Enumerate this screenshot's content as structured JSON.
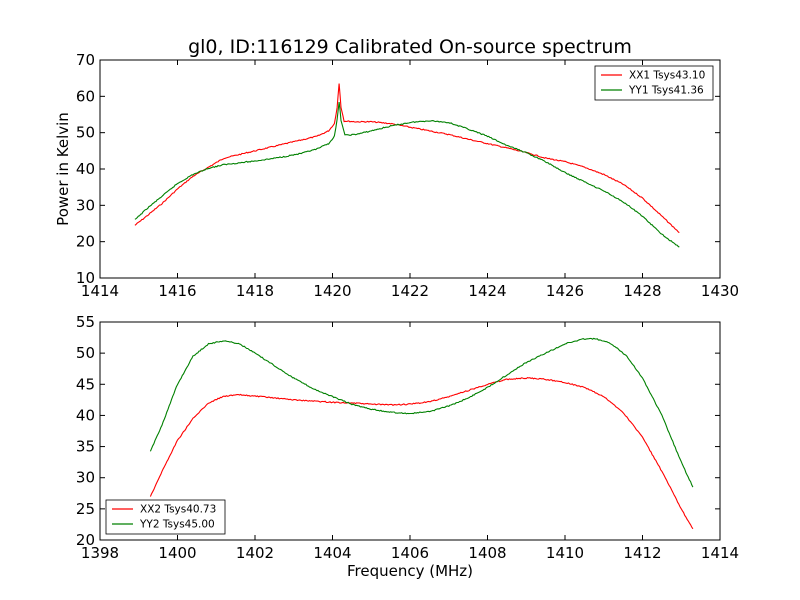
{
  "figure": {
    "title": "gl0, ID:116129 Calibrated On-source spectrum",
    "shared_ylabel": "Power in Kelvin",
    "shared_xlabel": "Frequency (MHz)"
  },
  "colors": {
    "red": "#ff0000",
    "green": "#008000"
  },
  "chart_data": [
    {
      "type": "line",
      "title": "gl0, ID:116129 Calibrated On-source spectrum",
      "ylabel": "Power in Kelvin",
      "xlabel": "",
      "xlim": [
        1414,
        1430
      ],
      "ylim": [
        10,
        70
      ],
      "xticks": [
        "1414",
        "1416",
        "1418",
        "1420",
        "1422",
        "1424",
        "1426",
        "1428",
        "1430"
      ],
      "yticks": [
        "10",
        "20",
        "30",
        "40",
        "50",
        "60",
        "70"
      ],
      "grid": false,
      "legend": "top-right",
      "series": [
        {
          "name": "XX1 Tsys43.10",
          "color": "#ff0000",
          "points": [
            [
              1414.9,
              24.5
            ],
            [
              1415.2,
              27
            ],
            [
              1415.6,
              30.5
            ],
            [
              1416,
              34.5
            ],
            [
              1416.4,
              38
            ],
            [
              1416.8,
              40.5
            ],
            [
              1417.2,
              43
            ],
            [
              1417.6,
              44
            ],
            [
              1418,
              45
            ],
            [
              1418.4,
              46
            ],
            [
              1418.8,
              47
            ],
            [
              1419.2,
              48
            ],
            [
              1419.6,
              49
            ],
            [
              1419.9,
              50.5
            ],
            [
              1420.05,
              52.5
            ],
            [
              1420.12,
              57
            ],
            [
              1420.17,
              63.5
            ],
            [
              1420.22,
              57
            ],
            [
              1420.3,
              53.2
            ],
            [
              1420.6,
              53
            ],
            [
              1421,
              53
            ],
            [
              1421.5,
              52.5
            ],
            [
              1422,
              51.5
            ],
            [
              1422.5,
              50.5
            ],
            [
              1423,
              49.5
            ],
            [
              1423.5,
              48.2
            ],
            [
              1424,
              47
            ],
            [
              1424.5,
              45.8
            ],
            [
              1425,
              44.5
            ],
            [
              1425.5,
              43
            ],
            [
              1426,
              42
            ],
            [
              1426.5,
              40.5
            ],
            [
              1427,
              38.5
            ],
            [
              1427.5,
              35.8
            ],
            [
              1428,
              32
            ],
            [
              1428.5,
              27
            ],
            [
              1428.95,
              22.5
            ]
          ]
        },
        {
          "name": "YY1 Tsys41.36",
          "color": "#008000",
          "points": [
            [
              1414.9,
              26
            ],
            [
              1415.2,
              29
            ],
            [
              1415.6,
              32.5
            ],
            [
              1416,
              36
            ],
            [
              1416.4,
              38.5
            ],
            [
              1416.8,
              40.2
            ],
            [
              1417.2,
              41.2
            ],
            [
              1417.6,
              41.7
            ],
            [
              1418,
              42.2
            ],
            [
              1418.4,
              42.8
            ],
            [
              1418.8,
              43.5
            ],
            [
              1419.2,
              44.3
            ],
            [
              1419.6,
              45.5
            ],
            [
              1419.9,
              47
            ],
            [
              1420.05,
              49
            ],
            [
              1420.12,
              53.5
            ],
            [
              1420.17,
              58.5
            ],
            [
              1420.22,
              53.5
            ],
            [
              1420.32,
              49.3
            ],
            [
              1420.6,
              49.5
            ],
            [
              1421,
              50.5
            ],
            [
              1421.5,
              51.8
            ],
            [
              1422,
              52.8
            ],
            [
              1422.5,
              53.3
            ],
            [
              1423,
              52.8
            ],
            [
              1423.5,
              51
            ],
            [
              1424,
              49
            ],
            [
              1424.5,
              46.5
            ],
            [
              1425,
              44.5
            ],
            [
              1425.5,
              42
            ],
            [
              1426,
              39
            ],
            [
              1426.5,
              36.5
            ],
            [
              1427,
              34
            ],
            [
              1427.5,
              31
            ],
            [
              1428,
              27
            ],
            [
              1428.5,
              22
            ],
            [
              1428.95,
              18.5
            ]
          ]
        }
      ]
    },
    {
      "type": "line",
      "title": "",
      "ylabel": "",
      "xlabel": "Frequency (MHz)",
      "xlim": [
        1398,
        1414
      ],
      "ylim": [
        20,
        55
      ],
      "xticks": [
        "1398",
        "1400",
        "1402",
        "1404",
        "1406",
        "1408",
        "1410",
        "1412",
        "1414"
      ],
      "yticks": [
        "20",
        "25",
        "30",
        "35",
        "40",
        "45",
        "50",
        "55"
      ],
      "grid": false,
      "legend": "bottom-left",
      "series": [
        {
          "name": "XX2 Tsys40.73",
          "color": "#ff0000",
          "points": [
            [
              1399.3,
              27
            ],
            [
              1399.6,
              31
            ],
            [
              1400,
              36
            ],
            [
              1400.4,
              39.5
            ],
            [
              1400.8,
              42
            ],
            [
              1401.2,
              43.1
            ],
            [
              1401.6,
              43.3
            ],
            [
              1402,
              43.1
            ],
            [
              1402.5,
              42.8
            ],
            [
              1403,
              42.5
            ],
            [
              1403.5,
              42.3
            ],
            [
              1404,
              42.1
            ],
            [
              1404.5,
              42
            ],
            [
              1405,
              41.8
            ],
            [
              1405.5,
              41.7
            ],
            [
              1406,
              41.8
            ],
            [
              1406.5,
              42.2
            ],
            [
              1407,
              43
            ],
            [
              1407.5,
              44
            ],
            [
              1408,
              45
            ],
            [
              1408.5,
              45.8
            ],
            [
              1409,
              46
            ],
            [
              1409.5,
              45.8
            ],
            [
              1410,
              45.3
            ],
            [
              1410.5,
              44.5
            ],
            [
              1411,
              43
            ],
            [
              1411.5,
              40.5
            ],
            [
              1412,
              36.5
            ],
            [
              1412.5,
              31
            ],
            [
              1413,
              25
            ],
            [
              1413.3,
              21.8
            ]
          ]
        },
        {
          "name": "YY2 Tsys45.00",
          "color": "#008000",
          "points": [
            [
              1399.3,
              34.2
            ],
            [
              1399.6,
              38.5
            ],
            [
              1400,
              45
            ],
            [
              1400.4,
              49.5
            ],
            [
              1400.8,
              51.5
            ],
            [
              1401.2,
              52
            ],
            [
              1401.6,
              51.5
            ],
            [
              1402,
              50
            ],
            [
              1402.5,
              48
            ],
            [
              1403,
              46
            ],
            [
              1403.5,
              44.3
            ],
            [
              1404,
              43
            ],
            [
              1404.5,
              41.8
            ],
            [
              1405,
              41
            ],
            [
              1405.5,
              40.5
            ],
            [
              1406,
              40.3
            ],
            [
              1406.5,
              40.6
            ],
            [
              1407,
              41.5
            ],
            [
              1407.5,
              42.8
            ],
            [
              1408,
              44.5
            ],
            [
              1408.5,
              46.5
            ],
            [
              1409,
              48.5
            ],
            [
              1409.5,
              50
            ],
            [
              1410,
              51.5
            ],
            [
              1410.5,
              52.3
            ],
            [
              1410.8,
              52.3
            ],
            [
              1411.2,
              51.5
            ],
            [
              1411.6,
              49.5
            ],
            [
              1412,
              46
            ],
            [
              1412.5,
              40
            ],
            [
              1413,
              32.5
            ],
            [
              1413.3,
              28.5
            ]
          ]
        }
      ]
    }
  ]
}
